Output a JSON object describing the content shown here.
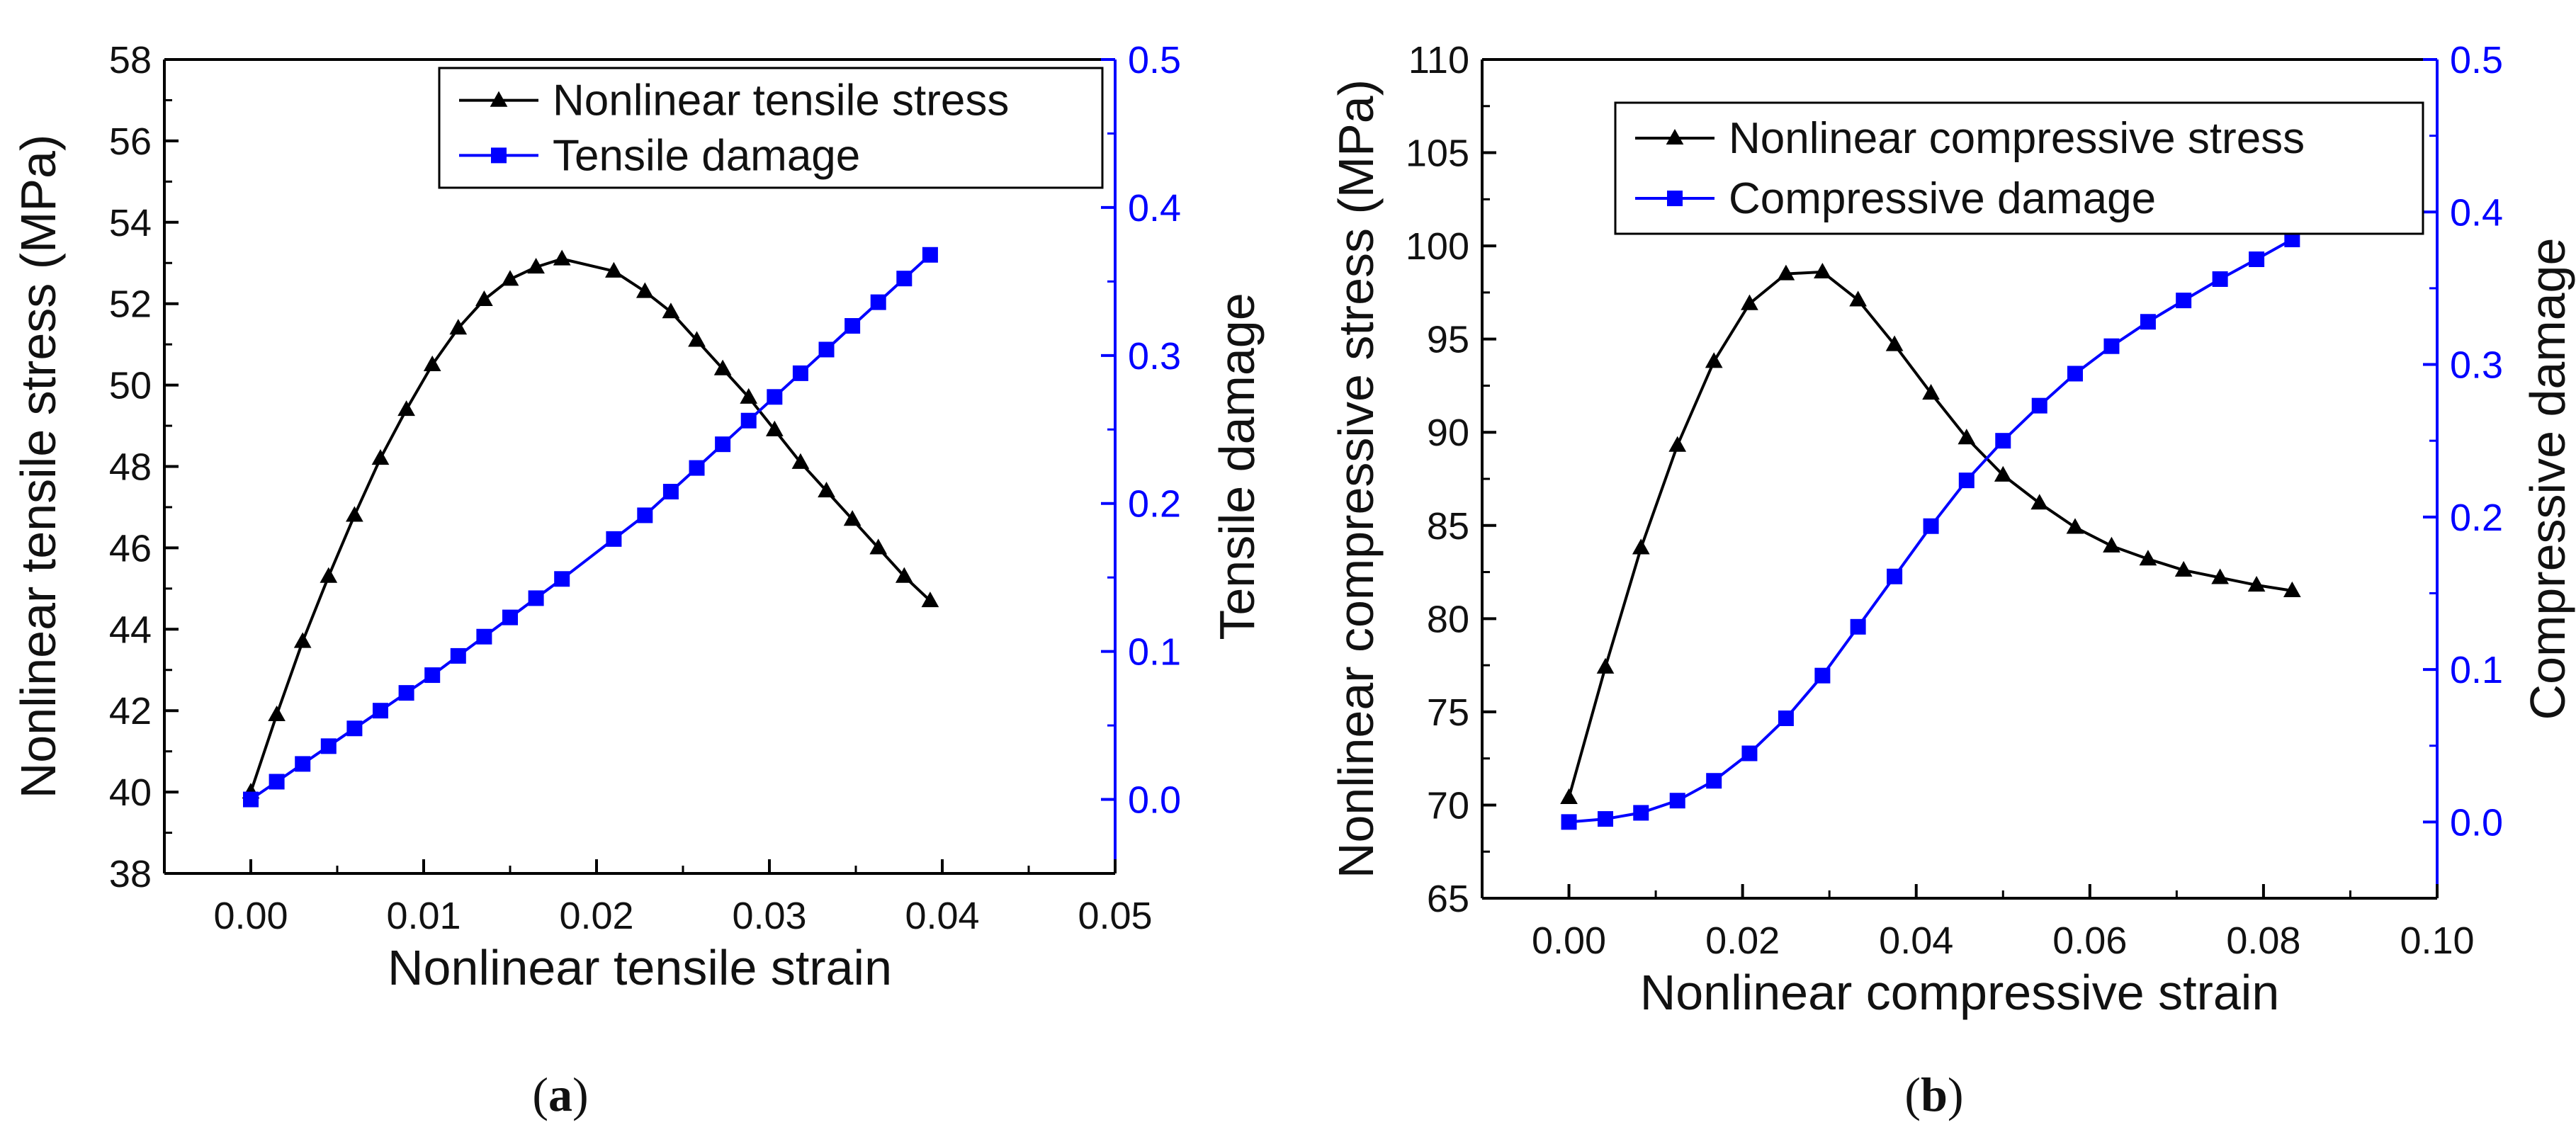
{
  "colors": {
    "stress": "#000000",
    "damage": "#0000ff",
    "right_axis": "#0000ff",
    "frame": "#000000"
  },
  "chart_data": [
    {
      "type": "line",
      "caption": "(a)",
      "caption_open": "(",
      "caption_letter": "a",
      "caption_close": ")",
      "xlabel": "Nonlinear tensile strain",
      "ylabel": "Nonlinear tensile stress (MPa)",
      "y2label": "Tensile damage",
      "xlim": [
        -0.005,
        0.05
      ],
      "ylim": [
        38,
        58
      ],
      "y2lim": [
        -0.05,
        0.5
      ],
      "xticks": [
        0.0,
        0.01,
        0.02,
        0.03,
        0.04,
        0.05
      ],
      "xtick_labels": [
        "0.00",
        "0.01",
        "0.02",
        "0.03",
        "0.04",
        "0.05"
      ],
      "yticks": [
        38,
        40,
        42,
        44,
        46,
        48,
        50,
        52,
        54,
        56,
        58
      ],
      "ytick_labels": [
        "38",
        "40",
        "42",
        "44",
        "46",
        "48",
        "50",
        "52",
        "54",
        "56",
        "58"
      ],
      "y2ticks": [
        0.0,
        0.1,
        0.2,
        0.3,
        0.4,
        0.5
      ],
      "y2tick_labels": [
        "0.0",
        "0.1",
        "0.2",
        "0.3",
        "0.4",
        "0.5"
      ],
      "legend_position": "top-right",
      "series": [
        {
          "name": "Nonlinear tensile stress",
          "axis": "left",
          "marker": "triangle",
          "x": [
            0.0,
            0.0015,
            0.003,
            0.0045,
            0.006,
            0.0075,
            0.009,
            0.0105,
            0.012,
            0.0135,
            0.015,
            0.0165,
            0.018,
            0.021,
            0.0228,
            0.0243,
            0.0258,
            0.0273,
            0.0288,
            0.0303,
            0.0318,
            0.0333,
            0.0348,
            0.0363,
            0.0378,
            0.0393
          ],
          "values": [
            40.0,
            41.9,
            43.7,
            45.3,
            46.8,
            48.2,
            49.4,
            50.5,
            51.4,
            52.1,
            52.6,
            52.9,
            53.1,
            52.8,
            52.3,
            51.8,
            51.1,
            50.4,
            49.7,
            48.9,
            48.1,
            47.4,
            46.7,
            46.0,
            45.3,
            44.7
          ]
        },
        {
          "name": "Tensile damage",
          "axis": "right",
          "marker": "square",
          "x": [
            0.0,
            0.0015,
            0.003,
            0.0045,
            0.006,
            0.0075,
            0.009,
            0.0105,
            0.012,
            0.0135,
            0.015,
            0.0165,
            0.018,
            0.021,
            0.0228,
            0.0243,
            0.0258,
            0.0273,
            0.0288,
            0.0303,
            0.0318,
            0.0333,
            0.0348,
            0.0363,
            0.0378,
            0.0393
          ],
          "values": [
            0.0,
            0.012,
            0.024,
            0.036,
            0.048,
            0.06,
            0.072,
            0.084,
            0.097,
            0.11,
            0.123,
            0.136,
            0.149,
            0.176,
            0.192,
            0.208,
            0.224,
            0.24,
            0.256,
            0.272,
            0.288,
            0.304,
            0.32,
            0.336,
            0.352,
            0.368
          ]
        }
      ]
    },
    {
      "type": "line",
      "caption": "(b)",
      "caption_open": "(",
      "caption_letter": "b",
      "caption_close": ")",
      "xlabel": "Nonlinear compressive strain",
      "ylabel": "Nonlinear compressive stress (MPa)",
      "y2label": "Compressive damage",
      "xlim": [
        -0.01,
        0.1
      ],
      "ylim": [
        65,
        110
      ],
      "y2lim": [
        -0.05,
        0.5
      ],
      "xticks": [
        0.0,
        0.02,
        0.04,
        0.06,
        0.08,
        0.1
      ],
      "xtick_labels": [
        "0.00",
        "0.02",
        "0.04",
        "0.06",
        "0.08",
        "0.10"
      ],
      "yticks": [
        65,
        70,
        75,
        80,
        85,
        90,
        95,
        100,
        105,
        110
      ],
      "ytick_labels": [
        "65",
        "70",
        "75",
        "80",
        "85",
        "90",
        "95",
        "100",
        "105",
        "110"
      ],
      "y2ticks": [
        0.0,
        0.1,
        0.2,
        0.3,
        0.4,
        0.5
      ],
      "y2tick_labels": [
        "0.0",
        "0.1",
        "0.2",
        "0.3",
        "0.4",
        "0.5"
      ],
      "legend_position": "top-right",
      "series": [
        {
          "name": "Nonlinear compressive stress",
          "axis": "left",
          "marker": "triangle",
          "x": [
            0.0,
            0.0042,
            0.0083,
            0.0125,
            0.0167,
            0.0208,
            0.025,
            0.0292,
            0.0333,
            0.0375,
            0.0417,
            0.0458,
            0.05,
            0.0542,
            0.0583,
            0.0625,
            0.0667,
            0.0708,
            0.075,
            0.0792,
            0.0833
          ],
          "values": [
            70.4,
            77.4,
            83.8,
            89.3,
            93.8,
            96.9,
            98.5,
            98.6,
            97.1,
            94.7,
            92.1,
            89.7,
            87.7,
            86.2,
            84.9,
            83.9,
            83.2,
            82.6,
            82.2,
            81.8,
            81.5
          ]
        },
        {
          "name": "Compressive damage",
          "axis": "right",
          "marker": "square",
          "x": [
            0.0,
            0.0042,
            0.0083,
            0.0125,
            0.0167,
            0.0208,
            0.025,
            0.0292,
            0.0333,
            0.0375,
            0.0417,
            0.0458,
            0.05,
            0.0542,
            0.0583,
            0.0625,
            0.0667,
            0.0708,
            0.075,
            0.0792,
            0.0833
          ],
          "values": [
            0.0,
            0.002,
            0.006,
            0.014,
            0.027,
            0.045,
            0.068,
            0.096,
            0.128,
            0.161,
            0.194,
            0.224,
            0.25,
            0.273,
            0.294,
            0.312,
            0.328,
            0.342,
            0.356,
            0.369,
            0.382
          ]
        }
      ]
    }
  ]
}
